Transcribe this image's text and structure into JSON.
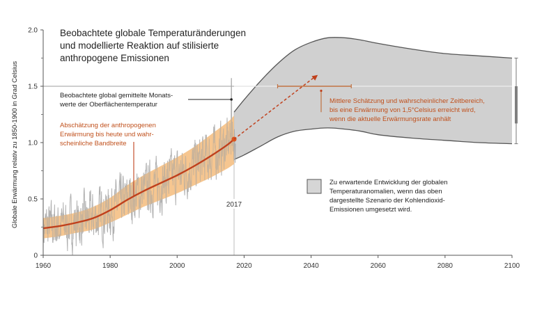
{
  "chart_data": {
    "type": "line",
    "title": [
      "Beobachtete globale Temperaturänderungen",
      "und modellierte Reaktion auf stilisierte",
      "anthropogene Emissionen"
    ],
    "xlabel": "",
    "ylabel": "Globale Erwärmung relativ zu 1850-1900  in Grad Celsius",
    "xlim": [
      1960,
      2100
    ],
    "ylim": [
      0,
      2.0
    ],
    "x_ticks": [
      "1960",
      "1980",
      "2000",
      "2020",
      "2040",
      "2060",
      "2080",
      "2100"
    ],
    "x_tick_values": [
      1960,
      1980,
      2000,
      2020,
      2040,
      2060,
      2080,
      2100
    ],
    "y_ticks": [
      "0",
      "0.5",
      "1.0",
      "1.5",
      "2.0"
    ],
    "y_tick_values": [
      0,
      0.5,
      1.0,
      1.5,
      2.0
    ],
    "y_minor_ticks": [
      0.25,
      0.75,
      1.25,
      1.75
    ],
    "reference_line": {
      "y": 1.5,
      "color": "#b0b0b0"
    },
    "year_marker": {
      "x": 2017,
      "label": "2017"
    },
    "series": [
      {
        "name": "Beobachtete global gemittelte Monatswerte der Oberflächentemperatur",
        "type": "noisy-line",
        "color": "#a8a8a8",
        "x_start": 1960,
        "x_end": 2017.5,
        "trend": "follows anthropogenic estimate",
        "amplitude": 0.18,
        "peak": {
          "x": 2016.2,
          "y": 1.57
        }
      },
      {
        "name": "Abschätzung der anthropogenen Erwärmung bis heute und wahrscheinliche Bandbreite",
        "type": "line-with-band",
        "color": "#c0401c",
        "band_color": "#f5c185",
        "x": [
          1960,
          1965,
          1970,
          1975,
          1980,
          1985,
          1990,
          1995,
          2000,
          2005,
          2010,
          2015,
          2017
        ],
        "y": [
          0.24,
          0.26,
          0.29,
          0.33,
          0.4,
          0.49,
          0.57,
          0.64,
          0.71,
          0.79,
          0.88,
          0.98,
          1.03
        ],
        "lower": [
          0.15,
          0.17,
          0.2,
          0.23,
          0.29,
          0.36,
          0.43,
          0.49,
          0.55,
          0.62,
          0.69,
          0.77,
          0.81
        ],
        "upper": [
          0.33,
          0.35,
          0.38,
          0.43,
          0.51,
          0.62,
          0.71,
          0.79,
          0.87,
          0.96,
          1.07,
          1.18,
          1.24
        ]
      },
      {
        "name": "Zu erwartende Entwicklung der globalen Temperaturanomalien",
        "type": "band",
        "color": "#d0d0d0",
        "edge_color": "#555555",
        "x": [
          2017,
          2020,
          2025,
          2030,
          2035,
          2040,
          2045,
          2050,
          2055,
          2060,
          2070,
          2080,
          2090,
          2100
        ],
        "upper": [
          1.27,
          1.38,
          1.55,
          1.7,
          1.82,
          1.89,
          1.93,
          1.93,
          1.91,
          1.88,
          1.83,
          1.79,
          1.77,
          1.75
        ],
        "lower": [
          0.85,
          0.89,
          0.97,
          1.05,
          1.1,
          1.12,
          1.13,
          1.12,
          1.1,
          1.07,
          1.04,
          1.02,
          1.0,
          0.99
        ]
      },
      {
        "name": "Fortsetzung der aktuellen Erwärmungsrate",
        "type": "dashed-arrow",
        "color": "#c0401c",
        "x": [
          2017,
          2042
        ],
        "y": [
          1.03,
          1.6
        ]
      }
    ],
    "range_1_5": {
      "x_start": 2030,
      "x_end": 2052,
      "y": 1.5,
      "color": "#c07040",
      "pointer_x": 2043
    },
    "right_bar": {
      "x": 2101.5,
      "thin": [
        0.99,
        1.75
      ],
      "thick": [
        1.17,
        1.5
      ]
    },
    "annotations": [
      {
        "id": "observed",
        "lines": [
          "Beobachtete global gemittelte Monats-",
          "werte der Oberflächentemperatur"
        ],
        "color": "#222222"
      },
      {
        "id": "anthropogenic",
        "lines": [
          "Abschätzung der anthropogenen",
          "Erwärmung bis heute und wahr-",
          "scheinliche Bandbreite"
        ],
        "color": "#c0501c"
      },
      {
        "id": "estimate-1-5",
        "lines": [
          "Mittlere Schätzung und wahrscheinlicher Zeitbereich,",
          "bis eine Erwärmung von 1,5°Celsius erreicht wird,",
          "wenn die aktuelle Erwärmungsrate anhält"
        ],
        "color": "#c0501c"
      }
    ],
    "legend": {
      "placement": "center-right",
      "swatch_color": "#d0d0d0",
      "lines": [
        "Zu erwartende Entwicklung der globalen",
        "Temperaturanomalien, wenn das oben",
        "dargestellte Szenario der Kohlendioxid-",
        "Emissionen umgesetzt wird."
      ]
    },
    "grid": false
  }
}
